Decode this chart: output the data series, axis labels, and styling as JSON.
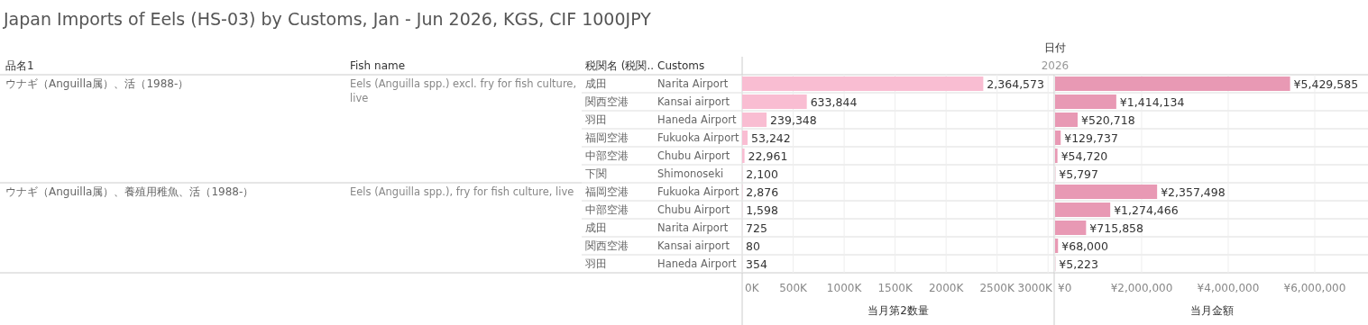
{
  "chart_data": [
    {
      "type": "bar",
      "orientation": "horizontal",
      "title": "Japan Imports of Eels (HS-03) by Customs, Jan - Jun 2026, KGS, CIF 1000JPY",
      "xlabel": "当月第2数量",
      "color": "#f9bdd2",
      "grid": "x",
      "categories": [
        "Narita Airport",
        "Kansai airport",
        "Haneda Airport",
        "Fukuoka Airport",
        "Chubu Airport",
        "Shimonoseki",
        "Fukuoka Airport",
        "Chubu Airport",
        "Narita Airport",
        "Kansai airport",
        "Haneda Airport"
      ],
      "values": [
        2364573,
        633844,
        239348,
        53242,
        22961,
        2100,
        2876,
        1598,
        725,
        80,
        354
      ],
      "value_labels": [
        "2,364,573",
        "633,844",
        "239,348",
        "53,242",
        "22,961",
        "2,100",
        "2,876",
        "1,598",
        "725",
        "80",
        "354"
      ],
      "xlim": [
        0,
        3060000
      ],
      "xticks": [
        {
          "value": 0,
          "label": "0K"
        },
        {
          "value": 500000,
          "label": "500K"
        },
        {
          "value": 1000000,
          "label": "1000K"
        },
        {
          "value": 1500000,
          "label": "1500K"
        },
        {
          "value": 2000000,
          "label": "2000K"
        },
        {
          "value": 2500000,
          "label": "2500K"
        },
        {
          "value": 3000000,
          "label": "3000K"
        }
      ],
      "annotations": [
        "品名1",
        "Fish name",
        "税関名 (税関..",
        "Customs",
        "ウナギ（Anguilla属）、活（1988-）",
        "Eels (Anguilla spp.) excl. fry for fish culture, live",
        "ウナギ（Anguilla属）、養殖用稚魚、活（1988-）",
        "Eels (Anguilla spp.), fry for fish culture, live",
        "成田",
        "関西空港",
        "羽田",
        "福岡空港",
        "中部空港",
        "下関",
        "福岡空港",
        "中部空港",
        "成田",
        "関西空港",
        "羽田"
      ]
    },
    {
      "type": "bar",
      "orientation": "horizontal",
      "xlabel": "当月金額",
      "color": "#e899b4",
      "grid": "x",
      "tick_labels": "x",
      "values": [
        5429585,
        1414134,
        520718,
        129737,
        54720,
        5797,
        2357498,
        1274466,
        715858,
        68000,
        5223
      ],
      "value_labels": [
        "¥5,429,585",
        "¥1,414,134",
        "¥520,718",
        "¥129,737",
        "¥54,720",
        "¥5,797",
        "¥2,357,498",
        "¥1,274,466",
        "¥715,858",
        "¥68,000",
        "¥5,223"
      ],
      "xlim": [
        0,
        7230000
      ],
      "xticks": [
        {
          "value": 0,
          "label": "¥0"
        },
        {
          "value": 2000000,
          "label": "¥2,000,000"
        },
        {
          "value": 4000000,
          "label": "¥4,000,000"
        },
        {
          "value": 6000000,
          "label": "¥6,000,000"
        }
      ],
      "annotations": [
        "日付",
        "2026"
      ]
    }
  ]
}
